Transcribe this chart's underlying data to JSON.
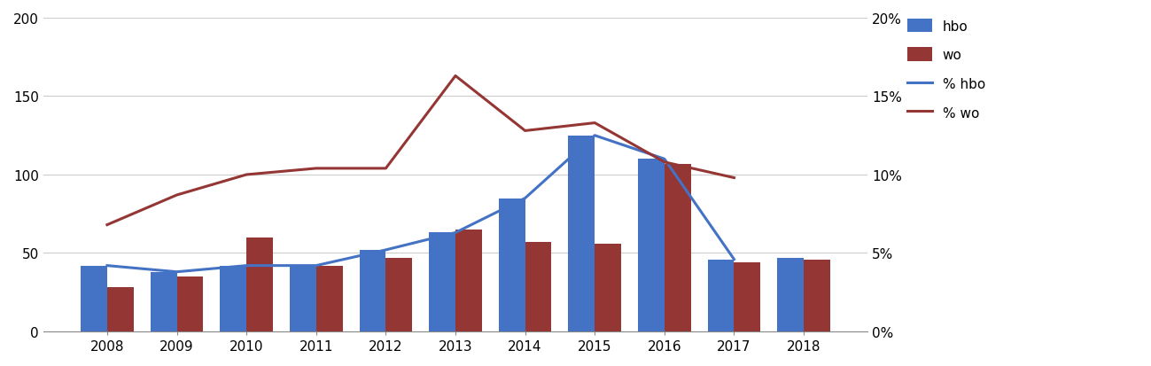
{
  "years": [
    2008,
    2009,
    2010,
    2011,
    2012,
    2013,
    2014,
    2015,
    2016,
    2017,
    2018
  ],
  "hbo_bars": [
    42,
    38,
    42,
    42,
    52,
    63,
    85,
    125,
    110,
    46,
    47
  ],
  "wo_bars": [
    28,
    35,
    60,
    42,
    47,
    65,
    57,
    56,
    107,
    44,
    46
  ],
  "pct_hbo_line": [
    42,
    38,
    42,
    42,
    52,
    63,
    85,
    125,
    110,
    46,
    null
  ],
  "pct_wo_line": [
    68,
    87,
    100,
    104,
    104,
    163,
    128,
    133,
    108,
    98,
    null
  ],
  "hbo_color": "#4472C4",
  "wo_color": "#943634",
  "line_hbo_color": "#4472C4",
  "line_wo_color": "#943634",
  "ylim_left": [
    0,
    200
  ],
  "yticks_left": [
    0,
    50,
    100,
    150,
    200
  ],
  "ytick_right_labels": [
    "0%",
    "5%",
    "10%",
    "15%",
    "20%"
  ],
  "background_color": "#FFFFFF",
  "bar_width": 0.38,
  "figsize": [
    12.99,
    4.14
  ],
  "dpi": 100
}
